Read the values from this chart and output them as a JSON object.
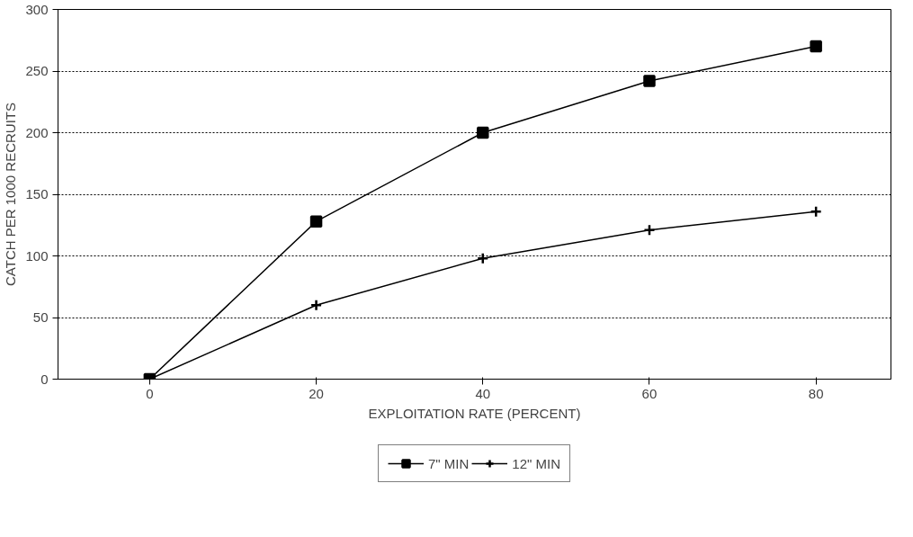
{
  "chart_data": {
    "type": "line",
    "xlabel": "EXPLOITATION RATE (PERCENT)",
    "ylabel": "CATCH PER 1000 RECRUITS",
    "x": [
      0,
      20,
      40,
      60,
      80
    ],
    "series": [
      {
        "name": "7\" MIN",
        "color": "#000000",
        "marker": "square",
        "values": [
          0,
          128,
          200,
          242,
          270
        ]
      },
      {
        "name": "12\" MIN",
        "color": "#000000",
        "marker": "cross",
        "values": [
          0,
          60,
          98,
          121,
          136
        ]
      }
    ],
    "xlim": [
      -11,
      89
    ],
    "xticks": [
      0,
      20,
      40,
      60,
      80
    ],
    "ylim": [
      0,
      300
    ],
    "yticks": [
      0,
      50,
      100,
      150,
      200,
      250,
      300
    ],
    "grid": "y",
    "legend": "bottom",
    "line_style": "solid"
  }
}
